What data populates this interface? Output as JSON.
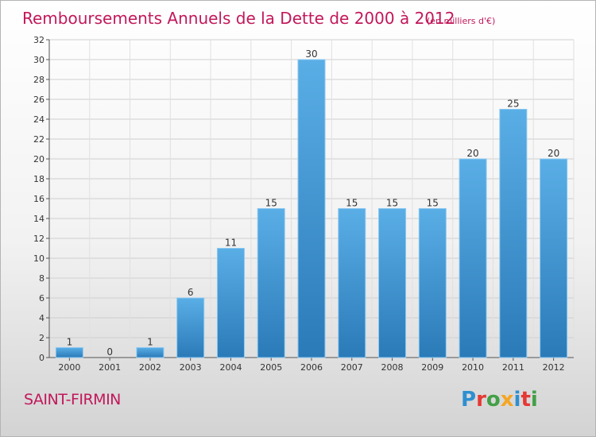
{
  "chart_data": {
    "type": "bar",
    "title": "Remboursements Annuels de la Dette de 2000 à 2012",
    "subtitle": "(en milliers d'€)",
    "categories": [
      "2000",
      "2001",
      "2002",
      "2003",
      "2004",
      "2005",
      "2006",
      "2007",
      "2008",
      "2009",
      "2010",
      "2011",
      "2012"
    ],
    "values": [
      1,
      0,
      1,
      6,
      11,
      15,
      30,
      15,
      15,
      15,
      20,
      25,
      20
    ],
    "ylim": [
      0,
      32
    ],
    "yticks": [
      0,
      2,
      4,
      6,
      8,
      10,
      12,
      14,
      16,
      18,
      20,
      22,
      24,
      26,
      28,
      30,
      32
    ],
    "grid": true,
    "colors": {
      "bar_top": "#5aaee6",
      "bar_bottom": "#2a7ab8",
      "bar_edge": "#8cc8f0"
    }
  },
  "footer": {
    "place": "SAINT-FIRMIN",
    "brand_letters": [
      {
        "ch": "P",
        "color": "#2e8fd0"
      },
      {
        "ch": "r",
        "color": "#e53935"
      },
      {
        "ch": "o",
        "color": "#43a047"
      },
      {
        "ch": "x",
        "color": "#f5a623"
      },
      {
        "ch": "i",
        "color": "#2e8fd0"
      },
      {
        "ch": "t",
        "color": "#e53935"
      },
      {
        "ch": "i",
        "color": "#43a047"
      }
    ]
  }
}
